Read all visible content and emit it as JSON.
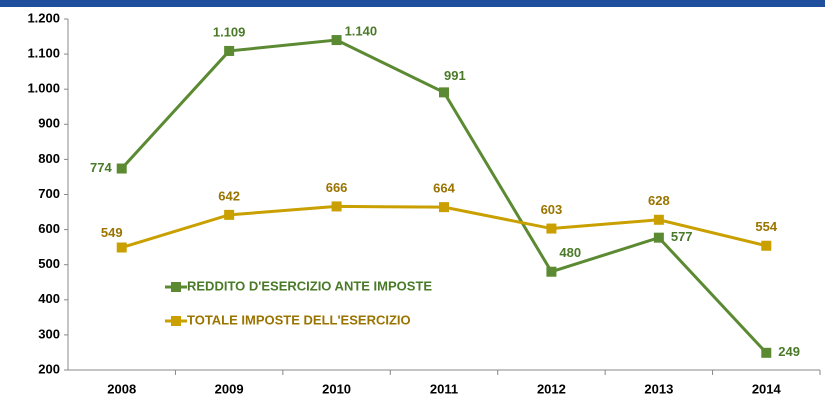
{
  "chart_data": {
    "type": "line",
    "categories": [
      "2008",
      "2009",
      "2010",
      "2011",
      "2012",
      "2013",
      "2014"
    ],
    "series": [
      {
        "name": "REDDITO D'ESERCIZIO ANTE IMPOSTE",
        "color": "#5b8a32",
        "values": [
          774,
          1109,
          1140,
          991,
          480,
          577,
          249
        ],
        "value_labels": [
          "774",
          "1.109",
          "1.140",
          "991",
          "480",
          "577",
          "249"
        ]
      },
      {
        "name": "TOTALE IMPOSTE DELL'ESERCIZIO",
        "color": "#c9a000",
        "values": [
          549,
          642,
          666,
          664,
          603,
          628,
          554
        ]
      }
    ],
    "ylim": [
      200,
      1200
    ],
    "yticks": [
      200,
      300,
      400,
      500,
      600,
      700,
      800,
      900,
      {
        "value": 1000,
        "label": "1.000"
      },
      {
        "value": 1100,
        "label": "1.100"
      },
      {
        "value": 1200,
        "label": "1.200"
      }
    ],
    "grid": false
  }
}
